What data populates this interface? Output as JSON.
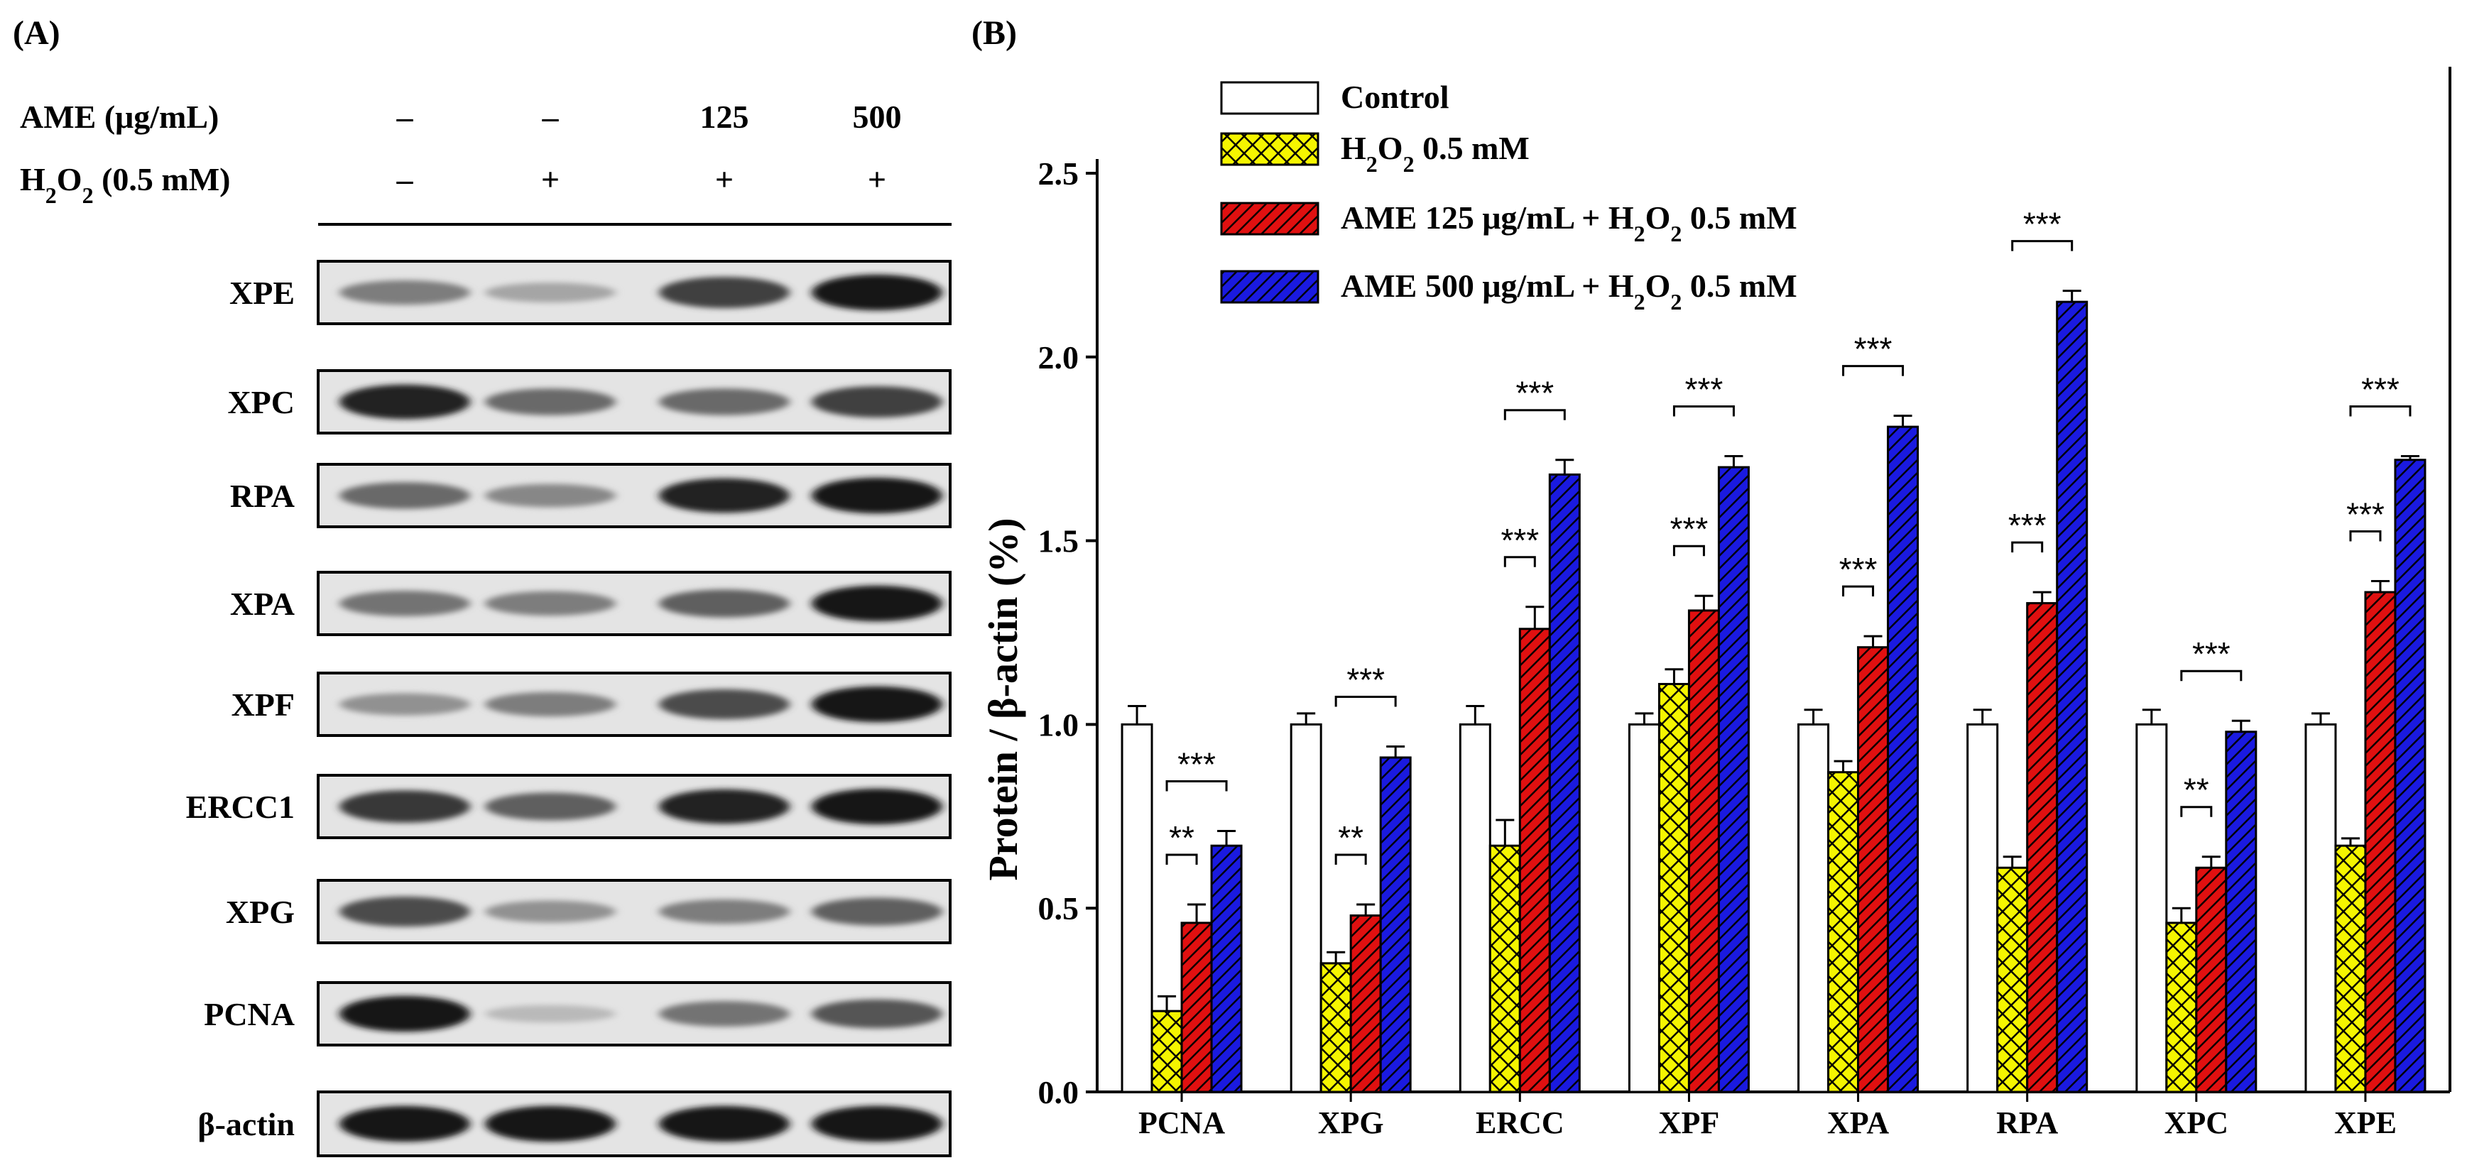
{
  "panel_a": {
    "label": "(A)",
    "treatment_rows": [
      {
        "label": "AME (μg/mL)",
        "values": [
          "–",
          "–",
          "125",
          "500"
        ]
      },
      {
        "label": "H2O2 (0.5 mM)",
        "values": [
          "–",
          "+",
          "+",
          "+"
        ]
      }
    ],
    "blots": [
      {
        "name": "XPE",
        "intensities": [
          0.45,
          0.25,
          0.75,
          0.95
        ]
      },
      {
        "name": "XPC",
        "intensities": [
          0.9,
          0.55,
          0.55,
          0.75
        ]
      },
      {
        "name": "RPA",
        "intensities": [
          0.55,
          0.4,
          0.9,
          0.95
        ]
      },
      {
        "name": "XPA",
        "intensities": [
          0.5,
          0.45,
          0.6,
          0.95
        ]
      },
      {
        "name": "XPF",
        "intensities": [
          0.35,
          0.45,
          0.7,
          0.95
        ]
      },
      {
        "name": "ERCC1",
        "intensities": [
          0.8,
          0.6,
          0.9,
          0.95
        ]
      },
      {
        "name": "XPG",
        "intensities": [
          0.7,
          0.35,
          0.45,
          0.6
        ]
      },
      {
        "name": "PCNA",
        "intensities": [
          0.95,
          0.15,
          0.5,
          0.65
        ]
      },
      {
        "name": "β-actin",
        "intensities": [
          0.95,
          0.95,
          0.95,
          0.95
        ]
      }
    ]
  },
  "chart_data": {
    "type": "bar",
    "panel_label": "(B)",
    "title": "",
    "xlabel": "",
    "ylabel": "Protein / β-actin (%)",
    "ylim": [
      0,
      2.5
    ],
    "yticks": [
      "0.0",
      "0.5",
      "1.0",
      "1.5",
      "2.0",
      "2.5"
    ],
    "categories": [
      "PCNA",
      "XPG",
      "ERCC",
      "XPF",
      "XPA",
      "RPA",
      "XPC",
      "XPE"
    ],
    "series": [
      {
        "name": "Control",
        "legend": "Control",
        "color": "#ffffff",
        "pattern": "none",
        "values": [
          1.0,
          1.0,
          1.0,
          1.0,
          1.0,
          1.0,
          1.0,
          1.0
        ],
        "errors": [
          0.05,
          0.03,
          0.05,
          0.03,
          0.04,
          0.04,
          0.04,
          0.03
        ]
      },
      {
        "name": "H2O2 0.5 mM",
        "legend": "H2O2 0.5 mM",
        "color": "#f5f500",
        "pattern": "cross",
        "values": [
          0.22,
          0.35,
          0.67,
          1.11,
          0.87,
          0.61,
          0.46,
          0.67
        ],
        "errors": [
          0.04,
          0.03,
          0.07,
          0.04,
          0.03,
          0.03,
          0.04,
          0.02
        ]
      },
      {
        "name": "AME 125 μg/mL + H2O2 0.5 mM",
        "legend": "AME 125 μg/mL + H2O2 0.5 mM",
        "color": "#e01010",
        "pattern": "diag",
        "values": [
          0.46,
          0.48,
          1.26,
          1.31,
          1.21,
          1.33,
          0.61,
          1.36
        ],
        "errors": [
          0.05,
          0.03,
          0.06,
          0.04,
          0.03,
          0.03,
          0.03,
          0.03
        ]
      },
      {
        "name": "AME 500 μg/mL + H2O2 0.5 mM",
        "legend": "AME 500 μg/mL + H2O2 0.5 mM",
        "color": "#1a1ae0",
        "pattern": "diag",
        "values": [
          0.67,
          0.91,
          1.68,
          1.7,
          1.81,
          2.15,
          0.98,
          1.72
        ],
        "errors": [
          0.04,
          0.03,
          0.04,
          0.03,
          0.03,
          0.03,
          0.03,
          0.01
        ]
      }
    ],
    "significance": [
      {
        "category": "PCNA",
        "between": [
          1,
          2
        ],
        "label": "**"
      },
      {
        "category": "PCNA",
        "between": [
          1,
          3
        ],
        "label": "***"
      },
      {
        "category": "XPG",
        "between": [
          1,
          2
        ],
        "label": "**"
      },
      {
        "category": "XPG",
        "between": [
          1,
          3
        ],
        "label": "***"
      },
      {
        "category": "ERCC",
        "between": [
          1,
          2
        ],
        "label": "***"
      },
      {
        "category": "ERCC",
        "between": [
          1,
          3
        ],
        "label": "***"
      },
      {
        "category": "XPF",
        "between": [
          1,
          2
        ],
        "label": "***"
      },
      {
        "category": "XPF",
        "between": [
          1,
          3
        ],
        "label": "***"
      },
      {
        "category": "XPA",
        "between": [
          1,
          2
        ],
        "label": "***"
      },
      {
        "category": "XPA",
        "between": [
          1,
          3
        ],
        "label": "***"
      },
      {
        "category": "RPA",
        "between": [
          1,
          2
        ],
        "label": "***"
      },
      {
        "category": "RPA",
        "between": [
          1,
          3
        ],
        "label": "***"
      },
      {
        "category": "XPC",
        "between": [
          1,
          2
        ],
        "label": "**"
      },
      {
        "category": "XPC",
        "between": [
          1,
          3
        ],
        "label": "***"
      },
      {
        "category": "XPE",
        "between": [
          1,
          2
        ],
        "label": "***"
      },
      {
        "category": "XPE",
        "between": [
          1,
          3
        ],
        "label": "***"
      }
    ]
  }
}
